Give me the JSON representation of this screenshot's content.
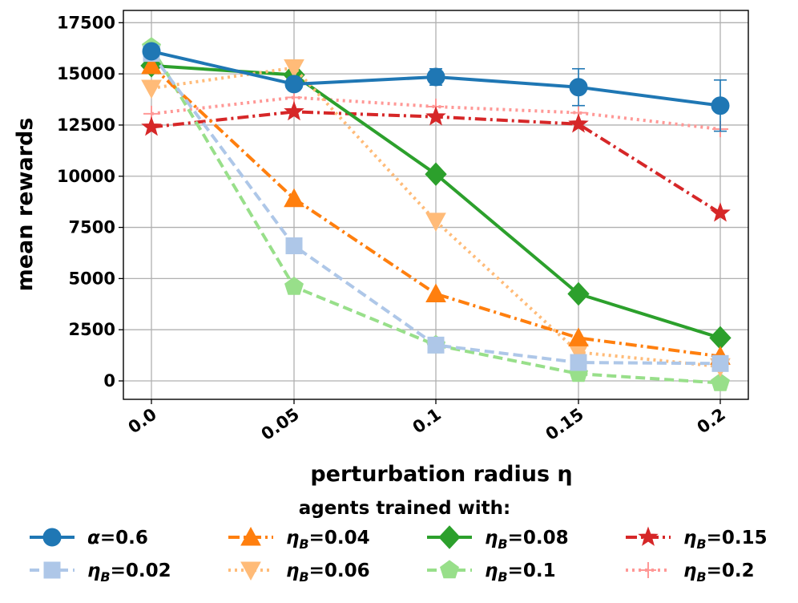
{
  "chart_data": {
    "type": "line",
    "xlabel": "perturbation radius η",
    "ylabel": "mean rewards",
    "categories": [
      "0.0",
      "0.05",
      "0.1",
      "0.15",
      "0.2"
    ],
    "yticks": [
      0,
      2500,
      5000,
      7500,
      10000,
      12500,
      15000,
      17500
    ],
    "ytick_labels": [
      "0",
      "2500",
      "5000",
      "7500",
      "10000",
      "12500",
      "15000",
      "17500"
    ],
    "ylim": [
      -900,
      18100
    ],
    "grid": true,
    "legend_title": "agents trained with:",
    "legend_placement": "bottom",
    "series": [
      {
        "name": "α=0.6",
        "symbol": "α",
        "subscript": "",
        "value_text": "=0.6",
        "color": "#1f77b4",
        "marker": "circle",
        "dash": "solid",
        "values": [
          16100,
          14500,
          14850,
          14350,
          13450
        ],
        "errors": [
          200,
          300,
          400,
          900,
          1250
        ]
      },
      {
        "name": "ηB=0.02",
        "symbol": "η",
        "subscript": "B",
        "value_text": "=0.02",
        "color": "#aec7e8",
        "marker": "square",
        "dash": "dashed",
        "values": [
          16000,
          6600,
          1750,
          900,
          850
        ],
        "errors": [
          0,
          0,
          0,
          0,
          0
        ]
      },
      {
        "name": "ηB=0.04",
        "symbol": "η",
        "subscript": "B",
        "value_text": "=0.04",
        "color": "#ff7f0e",
        "marker": "triangle-up",
        "dash": "dashdot",
        "values": [
          15400,
          8900,
          4250,
          2100,
          1200
        ],
        "errors": [
          0,
          0,
          0,
          0,
          0
        ]
      },
      {
        "name": "ηB=0.06",
        "symbol": "η",
        "subscript": "B",
        "value_text": "=0.06",
        "color": "#ffbb78",
        "marker": "triangle-down",
        "dash": "dotted",
        "values": [
          14300,
          15300,
          7800,
          1400,
          700
        ],
        "errors": [
          0,
          0,
          0,
          0,
          0
        ]
      },
      {
        "name": "ηB=0.08",
        "symbol": "η",
        "subscript": "B",
        "value_text": "=0.08",
        "color": "#2ca02c",
        "marker": "diamond",
        "dash": "solid",
        "values": [
          15400,
          14950,
          10100,
          4250,
          2100
        ],
        "errors": [
          0,
          0,
          0,
          0,
          0
        ]
      },
      {
        "name": "ηB=0.1",
        "symbol": "η",
        "subscript": "B",
        "value_text": "=0.1",
        "color": "#98df8a",
        "marker": "pentagon",
        "dash": "dashed",
        "values": [
          16300,
          4600,
          1750,
          350,
          -100
        ],
        "errors": [
          0,
          0,
          0,
          0,
          0
        ]
      },
      {
        "name": "ηB=0.15",
        "symbol": "η",
        "subscript": "B",
        "value_text": "=0.15",
        "color": "#d62728",
        "marker": "star",
        "dash": "dashdot",
        "values": [
          12400,
          13150,
          12900,
          12550,
          8200
        ],
        "errors": [
          0,
          0,
          0,
          0,
          0
        ]
      },
      {
        "name": "ηB=0.2",
        "symbol": "η",
        "subscript": "B",
        "value_text": "=0.2",
        "color": "#ff9896",
        "marker": "plus",
        "dash": "dotted",
        "values": [
          13050,
          13850,
          13400,
          13100,
          12300
        ],
        "errors": [
          0,
          0,
          0,
          0,
          0
        ]
      }
    ]
  }
}
